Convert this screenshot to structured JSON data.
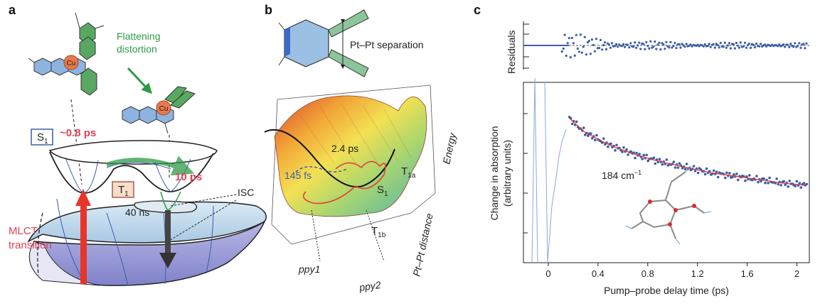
{
  "panel_a": {
    "letter": "a",
    "cu_label": "Cu",
    "flattening": [
      "Flattening",
      "distortion"
    ],
    "s1_state": "S",
    "s1_sub": "1",
    "t1_state": "T",
    "t1_sub": "1",
    "time_08": "~0.8 ps",
    "time_10": "10 ps",
    "time_40": "40 ns",
    "isc": "ISC",
    "mlct": [
      "MLCT",
      "transition"
    ]
  },
  "panel_b": {
    "letter": "b",
    "pt_label": "Pt–Pt separation",
    "energy": "Energy",
    "t1a": "T",
    "t1a_sub": "1a",
    "t1b": "T",
    "t1b_sub": "1b",
    "s1": "S",
    "s1_sub": "1",
    "time_24": "2.4 ps",
    "time_145": "145 fs",
    "ppy1": "ppy1",
    "ppy2": "ppy2",
    "ptpt_distance": "Pt–Pt distance"
  },
  "panel_c": {
    "letter": "c",
    "residuals_label": "Residuals",
    "ylabel": [
      "Change in absorption",
      "(arbitrary units)"
    ],
    "xlabel": "Pump–probe delay time (ps)",
    "annotation": "184 cm",
    "annotation_sup": "−1",
    "colors": {
      "data": "#3a5ea8",
      "fit": "#e0403a"
    }
  },
  "chart_data": {
    "type": "scatter",
    "xlabel": "Pump–probe delay time (ps)",
    "ylabel": "Change in absorption (arbitrary units)",
    "xlim": [
      -0.2,
      2.1
    ],
    "x_ticks": [
      0,
      0.4,
      0.8,
      1.2,
      1.6,
      2
    ],
    "x_tick_labels": [
      "0",
      "0.4",
      "0.8",
      "1.2",
      "1.6",
      "2"
    ],
    "series": [
      {
        "x": [
          0.17,
          0.3,
          0.5,
          0.7,
          0.9,
          1.1,
          1.3,
          1.5,
          1.7,
          1.9,
          2.08
        ],
        "values": [
          0.8,
          0.72,
          0.65,
          0.6,
          0.56,
          0.53,
          0.5,
          0.48,
          0.46,
          0.44,
          0.43
        ]
      }
    ]
  }
}
